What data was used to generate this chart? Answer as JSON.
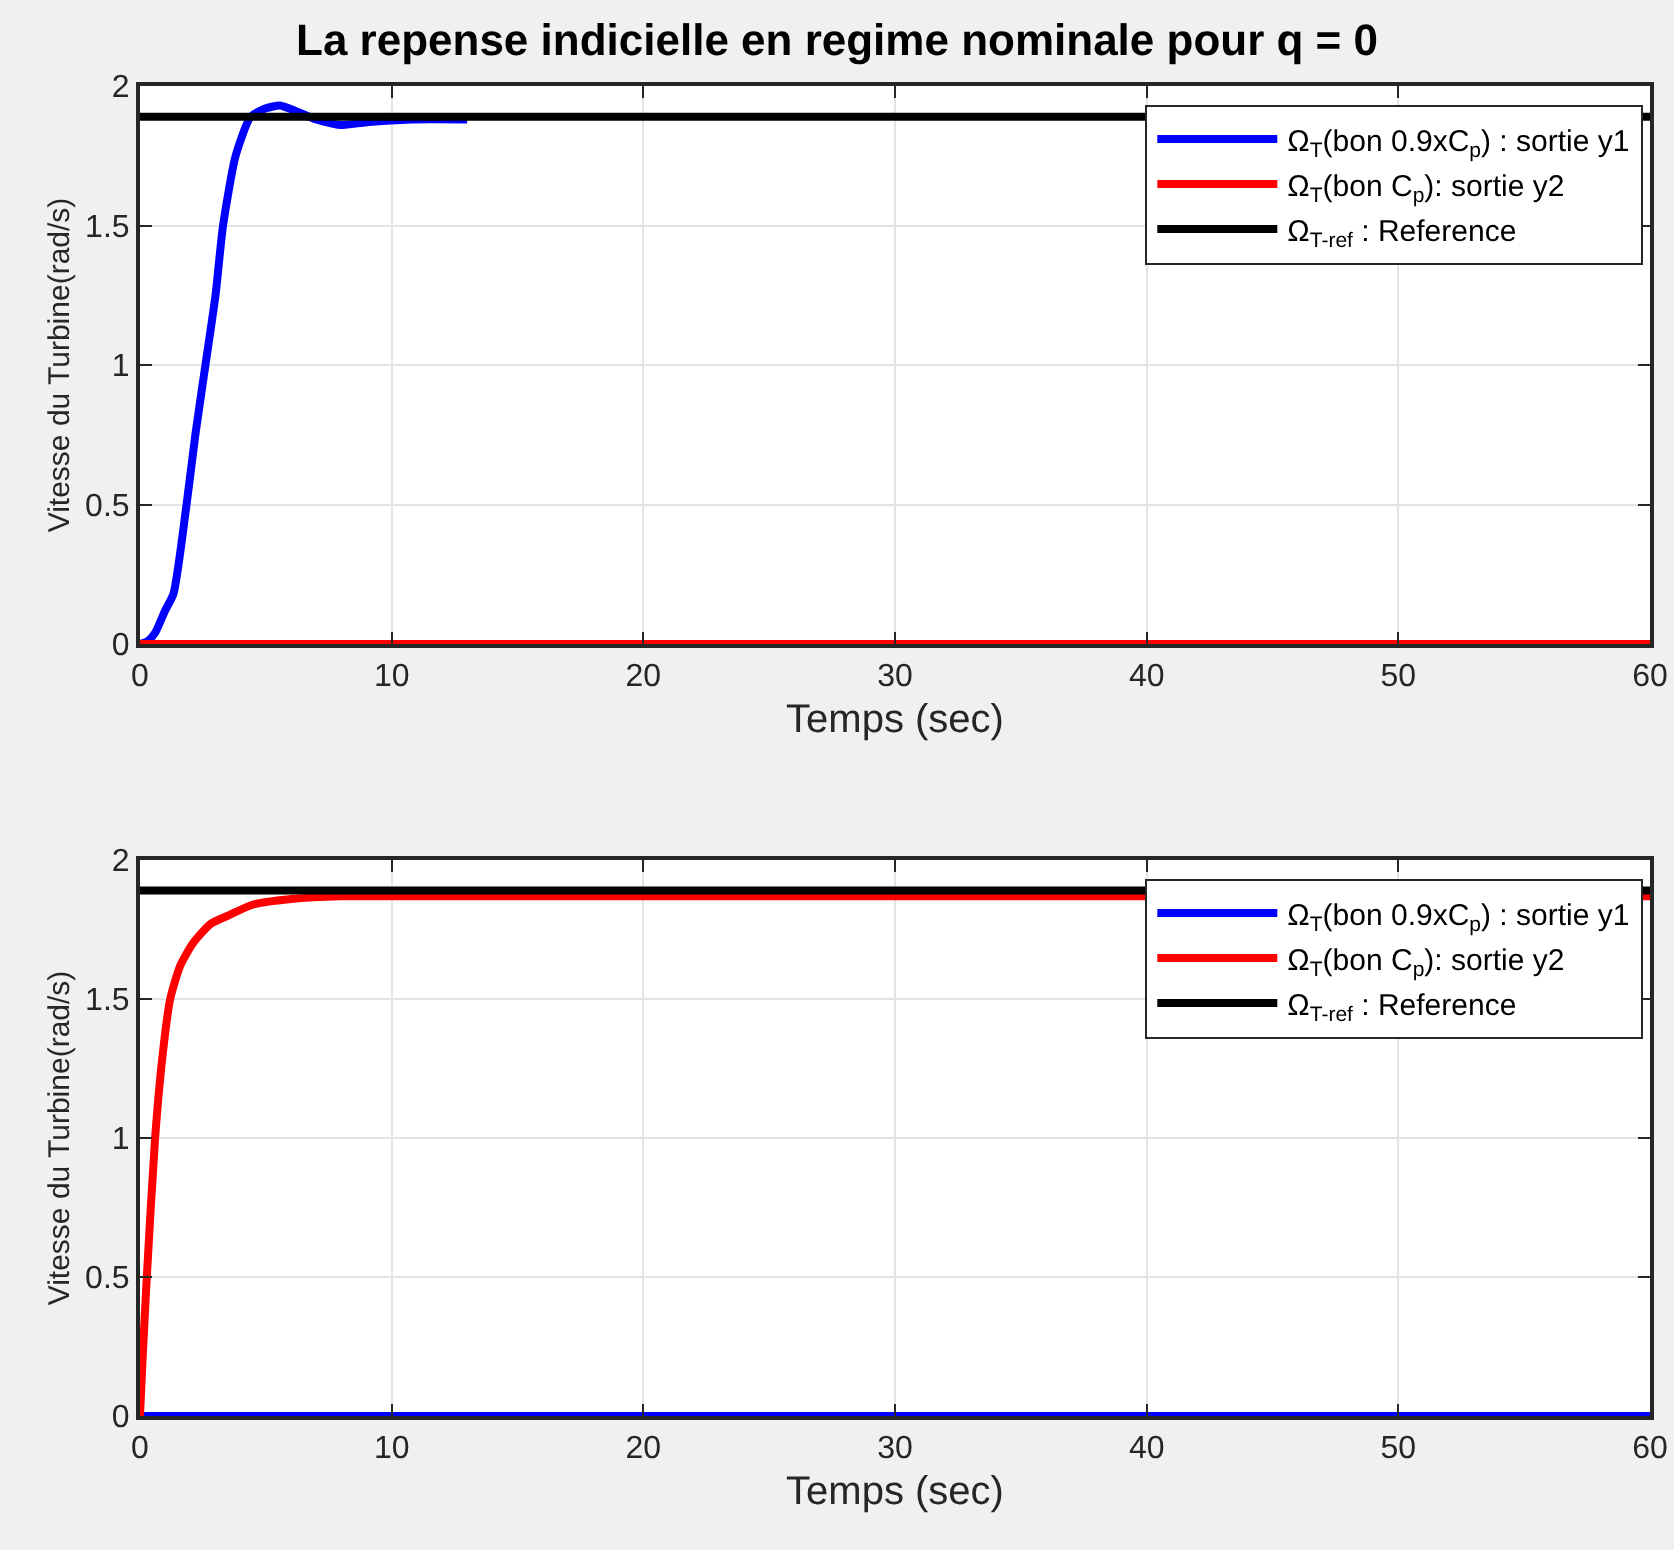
{
  "chart_data": [
    {
      "type": "line",
      "title": "La repense indicielle en regime nominale pour q = 0",
      "xlabel": "Temps (sec)",
      "ylabel": "Vitesse du Turbine(rad/s)",
      "xlim": [
        0,
        60
      ],
      "ylim": [
        0,
        2
      ],
      "xticks": [
        0,
        10,
        20,
        30,
        40,
        50,
        60
      ],
      "yticks": [
        0,
        0.5,
        1,
        1.5,
        2
      ],
      "grid": true,
      "legend": "top right",
      "marker": "none",
      "line_style": "solid",
      "series": [
        {
          "name": "Ω$_{T}$(bon 0.9xC$_{p}$) : sortie y1",
          "color": "#0000ff",
          "x": [
            0,
            0.3,
            0.6,
            1,
            1.33,
            1.85,
            2.2,
            2.6,
            3,
            3.3,
            3.8,
            4.4,
            5,
            5.56,
            6.2,
            7,
            7.95,
            9,
            10.8,
            13
          ],
          "values": [
            0,
            0.01,
            0.04,
            0.12,
            0.18,
            0.5,
            0.75,
            1.0,
            1.25,
            1.5,
            1.75,
            1.89,
            1.92,
            1.93,
            1.91,
            1.88,
            1.86,
            1.87,
            1.88,
            1.88
          ]
        },
        {
          "name": "Ω$_{T}$(bon C$_{p}$): sortie y2",
          "color": "#ff0000",
          "x": [
            0,
            60
          ],
          "values": [
            0,
            0
          ]
        },
        {
          "name": "Ω$_{T-ref}$ : Reference",
          "color": "#000000",
          "x": [
            0,
            60
          ],
          "values": [
            1.89,
            1.89
          ]
        }
      ]
    },
    {
      "type": "line",
      "xlabel": "Temps (sec)",
      "ylabel": "Vitesse du Turbine(rad/s)",
      "xlim": [
        0,
        60
      ],
      "ylim": [
        0,
        2
      ],
      "xticks": [
        0,
        10,
        20,
        30,
        40,
        50,
        60
      ],
      "yticks": [
        0,
        0.5,
        1,
        1.5,
        2
      ],
      "grid": true,
      "legend": "top right",
      "marker": "none",
      "line_style": "solid",
      "series": [
        {
          "name": "Ω$_{T}$(bon 0.9xC$_{p}$) : sortie y1",
          "color": "#0000ff",
          "x": [
            0,
            60
          ],
          "values": [
            0,
            0
          ]
        },
        {
          "name": "Ω$_{T}$(bon C$_{p}$): sortie y2",
          "color": "#ff0000",
          "x": [
            0,
            0.1,
            0.27,
            0.6,
            0.9,
            1.2,
            1.6,
            2.1,
            2.8,
            3.5,
            4.5,
            6,
            8,
            60
          ],
          "values": [
            0,
            0.2,
            0.5,
            1.0,
            1.3,
            1.5,
            1.62,
            1.7,
            1.77,
            1.8,
            1.84,
            1.86,
            1.87,
            1.87
          ]
        },
        {
          "name": "Ω$_{T-ref}$ : Reference",
          "color": "#000000",
          "x": [
            0,
            60
          ],
          "values": [
            1.89,
            1.89
          ]
        }
      ]
    }
  ]
}
